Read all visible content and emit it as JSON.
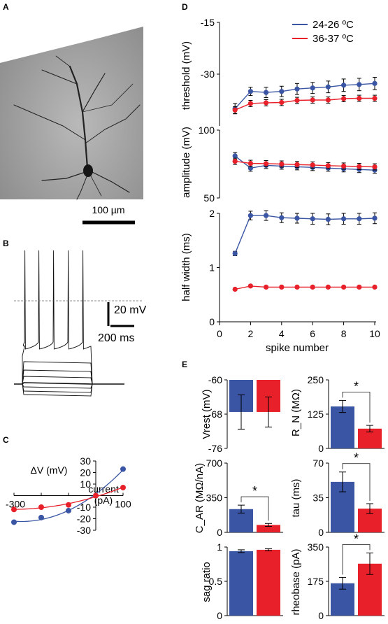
{
  "panels": {
    "A": "A",
    "B": "B",
    "C": "C",
    "D": "D",
    "E": "E"
  },
  "colors": {
    "room": "#3955A3",
    "phys": "#E8202A",
    "trace": "#111111"
  },
  "panel_A": {
    "scale_label": "100 µm"
  },
  "panel_B": {
    "scale_v_label": "20 mV",
    "scale_t_label": "200 ms"
  },
  "chart_data": [
    {
      "type": "scatter",
      "panel": "C",
      "ylabel": "ΔV (mV)",
      "xlabel_line1": "current",
      "xlabel_line2": "(pA)",
      "xlim": [
        -300,
        100
      ],
      "ylim": [
        -30,
        30
      ],
      "x_tick_labels": [
        "-300",
        "100"
      ],
      "y_ticks": [
        30,
        20,
        10,
        0,
        -10,
        -20,
        -30
      ],
      "series": [
        {
          "color_key": "room",
          "x": [
            -300,
            -200,
            -100,
            0,
            100
          ],
          "y": [
            -23,
            -19,
            -13,
            0,
            23
          ]
        },
        {
          "color_key": "phys",
          "x": [
            -300,
            -200,
            -100,
            0,
            100
          ],
          "y": [
            -12,
            -10,
            -8,
            0,
            7
          ]
        }
      ]
    },
    {
      "type": "line",
      "panel": "D",
      "legend": [
        "24-26 ºC",
        "36-37 ºC"
      ],
      "xlabel": "spike number",
      "x_ticks": [
        0,
        2,
        4,
        6,
        8,
        10
      ],
      "subplots": [
        {
          "ylabel": "threshold (mV)",
          "ylim": [
            -45,
            -15
          ],
          "y_ticks": [
            -15,
            -30
          ],
          "series": [
            {
              "color_key": "room",
              "x": [
                1,
                2,
                3,
                4,
                5,
                6,
                7,
                8,
                9,
                10
              ],
              "y": [
                -40,
                -35,
                -35.3,
                -35,
                -34.3,
                -34,
                -33.7,
                -33.2,
                -33,
                -32.7
              ],
              "err": [
                1.5,
                1.2,
                1.5,
                1.5,
                1.6,
                1.6,
                1.7,
                1.8,
                1.8,
                1.8
              ]
            },
            {
              "color_key": "phys",
              "x": [
                1,
                2,
                3,
                4,
                5,
                6,
                7,
                8,
                9,
                10
              ],
              "y": [
                -40.4,
                -38.5,
                -38.3,
                -38.2,
                -37.6,
                -37.5,
                -37.5,
                -37.1,
                -37,
                -37
              ],
              "err": [
                1.0,
                0.9,
                0.9,
                0.9,
                0.9,
                0.9,
                0.9,
                0.9,
                0.9,
                0.9
              ]
            }
          ]
        },
        {
          "ylabel": "amplitude (mV)",
          "ylim": [
            50,
            100
          ],
          "y_ticks": [
            100,
            50
          ],
          "series": [
            {
              "color_key": "room",
              "x": [
                1,
                2,
                3,
                4,
                5,
                6,
                7,
                8,
                9,
                10
              ],
              "y": [
                81,
                72,
                74,
                73.5,
                73,
                72.5,
                72,
                71.5,
                71,
                70.5
              ],
              "err": [
                2.5,
                2.3,
                2.3,
                2.3,
                2.3,
                2.3,
                2.3,
                2.3,
                2.3,
                2.3
              ]
            },
            {
              "color_key": "phys",
              "x": [
                1,
                2,
                3,
                4,
                5,
                6,
                7,
                8,
                9,
                10
              ],
              "y": [
                77,
                75.5,
                75.3,
                75,
                74.6,
                74.3,
                73.8,
                73.5,
                73.2,
                72.9
              ],
              "err": [
                2.3,
                2.3,
                2.3,
                2.3,
                2.3,
                2.3,
                2.3,
                2.3,
                2.3,
                2.3
              ]
            }
          ]
        },
        {
          "ylabel": "half width (ms)",
          "ylim": [
            0,
            2
          ],
          "y_ticks": [
            2,
            1,
            0
          ],
          "series": [
            {
              "color_key": "room",
              "x": [
                1,
                2,
                3,
                4,
                5,
                6,
                7,
                8,
                9,
                10
              ],
              "y": [
                1.26,
                1.96,
                1.96,
                1.92,
                1.91,
                1.9,
                1.89,
                1.9,
                1.9,
                1.91
              ],
              "err": [
                0.04,
                0.08,
                0.09,
                0.09,
                0.09,
                0.1,
                0.1,
                0.1,
                0.1,
                0.1
              ]
            },
            {
              "color_key": "phys",
              "x": [
                1,
                2,
                3,
                4,
                5,
                6,
                7,
                8,
                9,
                10
              ],
              "y": [
                0.6,
                0.66,
                0.64,
                0.64,
                0.64,
                0.64,
                0.64,
                0.64,
                0.64,
                0.64
              ],
              "err": [
                0.02,
                0.02,
                0.02,
                0.02,
                0.02,
                0.02,
                0.02,
                0.02,
                0.02,
                0.02
              ]
            }
          ]
        }
      ]
    },
    {
      "type": "bar",
      "panel": "E",
      "subplots": [
        {
          "ylabel": "Vrest (mV)",
          "ylim": [
            -76,
            -60
          ],
          "y_ticks": [
            -60,
            -68,
            -76
          ],
          "inverted": true,
          "values": [
            -67.5,
            -67.5
          ],
          "err": [
            4,
            3.5
          ],
          "sig": false
        },
        {
          "ylabel": "R_N (MΩ)",
          "ylim": [
            0,
            250
          ],
          "y_ticks": [
            250,
            125,
            0
          ],
          "values": [
            153,
            72
          ],
          "err": [
            22,
            12
          ],
          "sig": true
        },
        {
          "ylabel": "C_AR (MΩ/nA)",
          "ylim": [
            0,
            700
          ],
          "y_ticks": [
            700,
            350,
            0
          ],
          "values": [
            235,
            75
          ],
          "err": [
            40,
            15
          ],
          "sig": true
        },
        {
          "ylabel": "tau (ms)",
          "ylim": [
            0,
            70
          ],
          "y_ticks": [
            70,
            35,
            0
          ],
          "values": [
            51,
            24
          ],
          "err": [
            10,
            5
          ],
          "sig": true
        },
        {
          "ylabel": "sag ratio",
          "ylim": [
            0,
            1
          ],
          "y_ticks": [
            1,
            0.5,
            0
          ],
          "y_tick_labels": [
            "1",
            "0.5",
            "0"
          ],
          "values": [
            0.94,
            0.96
          ],
          "err": [
            0.02,
            0.015
          ],
          "sig": false
        },
        {
          "ylabel": "rheobase (pA)",
          "ylim": [
            0,
            350
          ],
          "y_ticks": [
            350,
            175,
            0
          ],
          "values": [
            165,
            265
          ],
          "err": [
            30,
            55
          ],
          "sig": true
        }
      ],
      "sig_marker": "*"
    }
  ]
}
